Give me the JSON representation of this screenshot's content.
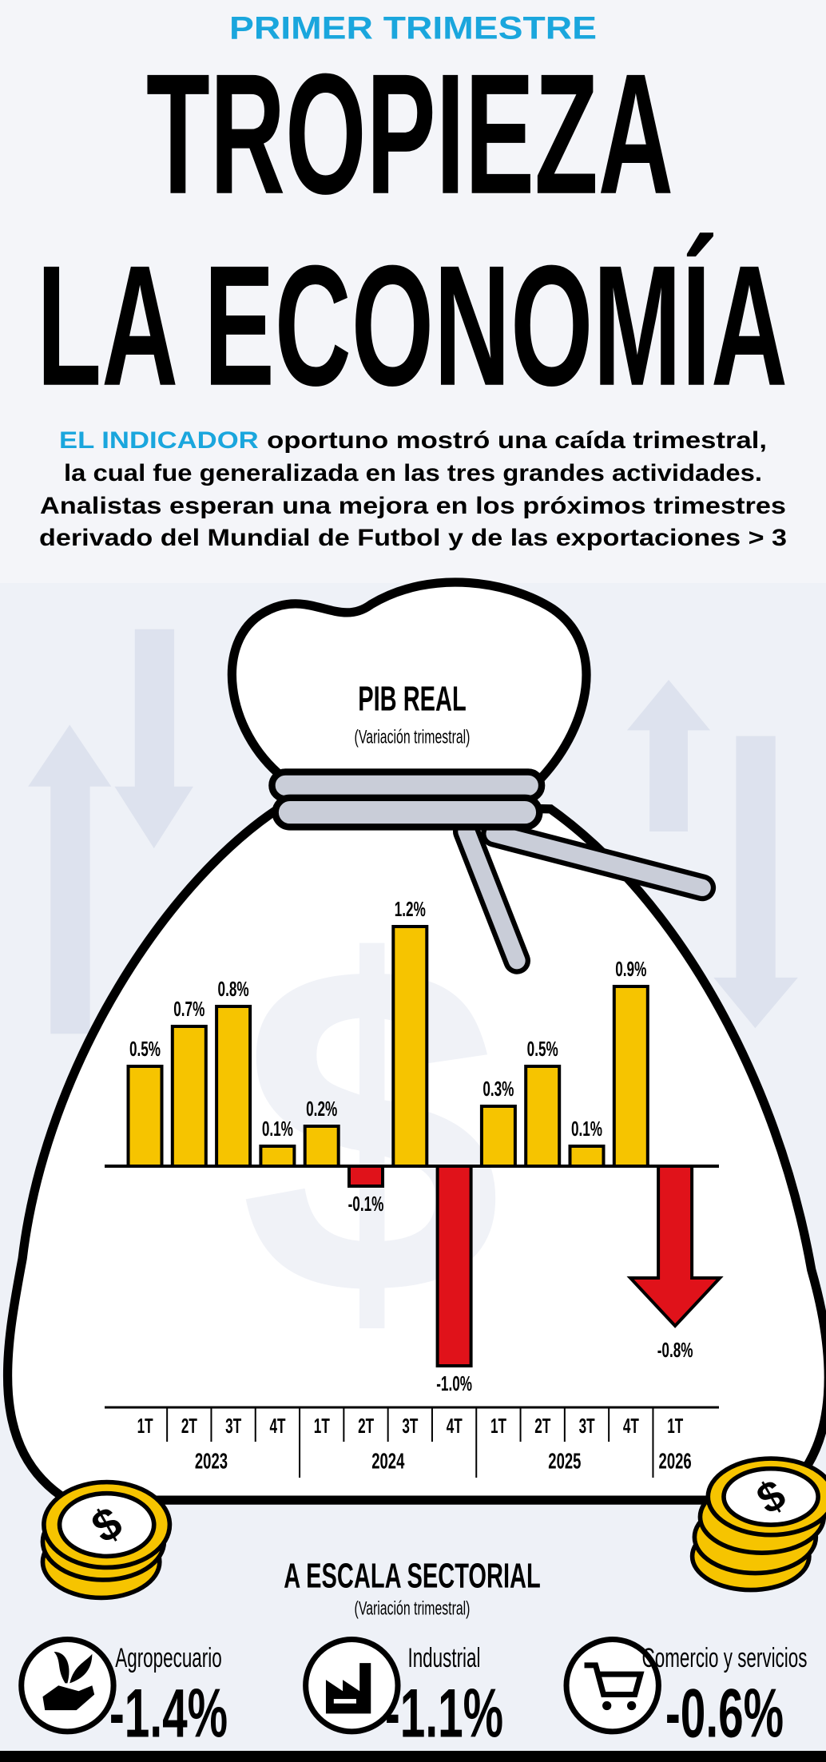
{
  "kicker": "PRIMER TRIMESTRE",
  "headline": [
    "TROPIEZA",
    "LA ECONOMÍA"
  ],
  "intro": {
    "highlight": "EL INDICADOR",
    "lines": [
      "oportuno mostró una caída trimestral,",
      "la cual fue generalizada en las tres grandes actividades.",
      "Analistas esperan una mejora en los próximos trimestres",
      "derivado del Mundial de Futbol y de las exportaciones > 3"
    ]
  },
  "chart_data": {
    "type": "bar",
    "title": "PIB REAL",
    "subtitle": "(Variación trimestral)",
    "categories": [
      "1T",
      "2T",
      "3T",
      "4T",
      "1T",
      "2T",
      "3T",
      "4T",
      "1T",
      "2T",
      "3T",
      "4T",
      "1T"
    ],
    "groups": [
      "2023",
      "2024",
      "2025",
      "2026"
    ],
    "values": [
      0.5,
      0.7,
      0.8,
      0.1,
      0.2,
      -0.1,
      1.2,
      -1.0,
      0.3,
      0.5,
      0.1,
      0.9,
      -0.8
    ],
    "value_labels": [
      "0.5%",
      "0.7%",
      "0.8%",
      "0.1%",
      "0.2%",
      "-0.1%",
      "1.2%",
      "-1.0%",
      "0.3%",
      "0.5%",
      "0.1%",
      "0.9%",
      "-0.8%"
    ],
    "color": "#f6c400",
    "negative_color": "#e0121a"
  },
  "sectors": {
    "title": "A ESCALA SECTORIAL",
    "subtitle": "(Variación trimestral)",
    "items": [
      {
        "name": "Agropecuario",
        "value": "-1.4%"
      },
      {
        "name": "Industrial",
        "value": "-1.1%"
      },
      {
        "name": "Comercio y servicios",
        "value": "-0.6%"
      }
    ]
  }
}
